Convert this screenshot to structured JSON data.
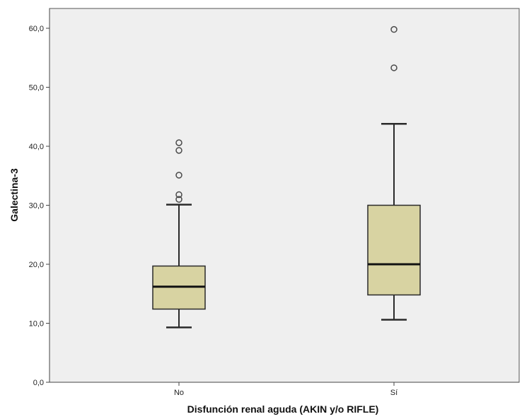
{
  "chart_data": {
    "type": "boxplot",
    "xlabel": "Disfunción renal aguda (AKIN y/o RIFLE)",
    "ylabel": "Galectina-3",
    "ylim": [
      0,
      63
    ],
    "yticks": [
      0,
      10,
      20,
      30,
      40,
      50,
      60
    ],
    "ytick_labels": [
      "0,0",
      "10,0",
      "20,0",
      "30,0",
      "40,0",
      "50,0",
      "60,0"
    ],
    "categories": [
      "No",
      "Sí"
    ],
    "boxes": [
      {
        "category": "No",
        "whisker_low": 9.3,
        "q1": 12.4,
        "median": 16.2,
        "q3": 19.7,
        "whisker_high": 30.1,
        "outliers": [
          31.0,
          31.8,
          35.1,
          39.3,
          40.6
        ]
      },
      {
        "category": "Sí",
        "whisker_low": 10.6,
        "q1": 14.8,
        "median": 20.0,
        "q3": 30.0,
        "whisker_high": 43.8,
        "outliers": [
          53.3,
          59.8
        ]
      }
    ],
    "colors": {
      "box_fill": "#d8d3a2",
      "plot_background": "#efefef",
      "stroke": "#2a2a2a",
      "outlier": "#4a4a4a"
    },
    "grid": false
  }
}
